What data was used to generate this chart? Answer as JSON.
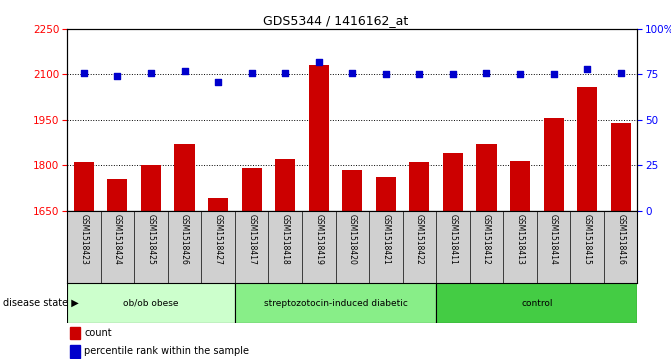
{
  "title": "GDS5344 / 1416162_at",
  "samples": [
    "GSM1518423",
    "GSM1518424",
    "GSM1518425",
    "GSM1518426",
    "GSM1518427",
    "GSM1518417",
    "GSM1518418",
    "GSM1518419",
    "GSM1518420",
    "GSM1518421",
    "GSM1518422",
    "GSM1518411",
    "GSM1518412",
    "GSM1518413",
    "GSM1518414",
    "GSM1518415",
    "GSM1518416"
  ],
  "counts": [
    1810,
    1755,
    1800,
    1870,
    1690,
    1790,
    1820,
    2130,
    1785,
    1760,
    1810,
    1840,
    1870,
    1815,
    1955,
    2060,
    1940
  ],
  "percentile_ranks": [
    76,
    74,
    76,
    77,
    71,
    76,
    76,
    82,
    76,
    75,
    75,
    75,
    76,
    75,
    75,
    78,
    76
  ],
  "groups": [
    {
      "label": "ob/ob obese",
      "start": 0,
      "end": 5,
      "color": "#ccffcc"
    },
    {
      "label": "streptozotocin-induced diabetic",
      "start": 5,
      "end": 11,
      "color": "#88ee88"
    },
    {
      "label": "control",
      "start": 11,
      "end": 17,
      "color": "#44cc44"
    }
  ],
  "ylim_left": [
    1650,
    2250
  ],
  "ylim_right": [
    0,
    100
  ],
  "yticks_left": [
    1650,
    1800,
    1950,
    2100,
    2250
  ],
  "yticks_right": [
    0,
    25,
    50,
    75,
    100
  ],
  "bar_color": "#cc0000",
  "dot_color": "#0000cc",
  "disease_state_label": "disease state"
}
